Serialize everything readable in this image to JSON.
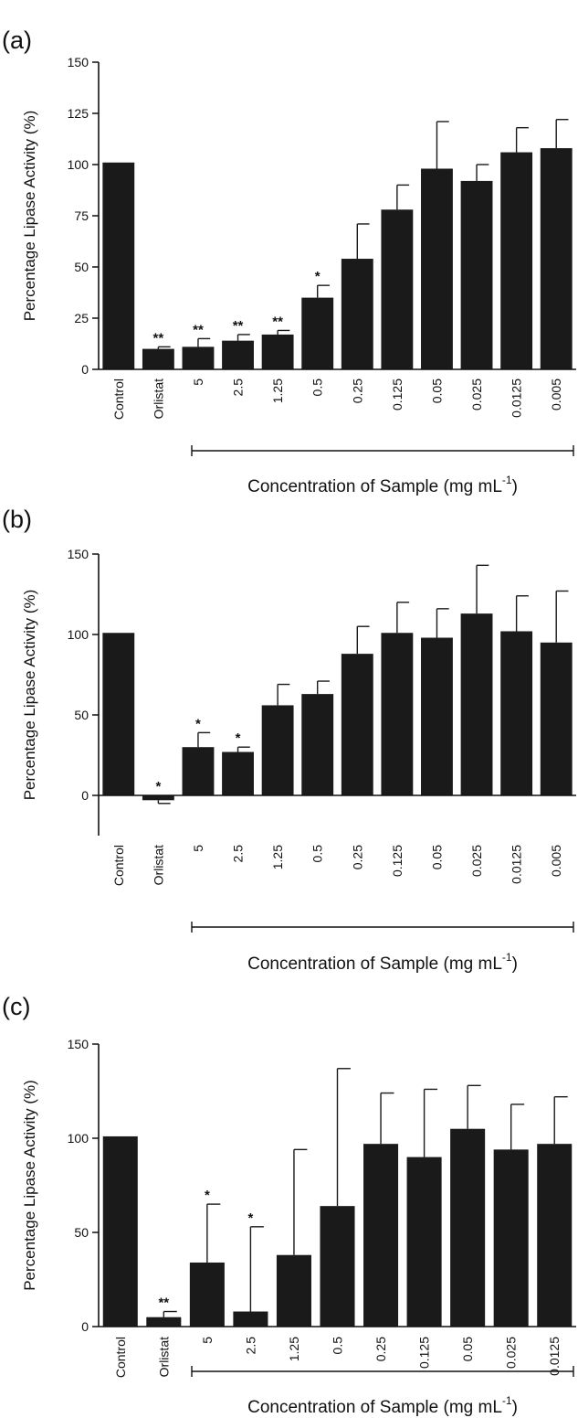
{
  "bar_color": "#1a1a1a",
  "chart_data": [
    {
      "type": "bar",
      "panel_label": "(a)",
      "ylabel": "Percentage Lipase Activity (%)",
      "xlabel_main": "Concentration of Sample (mg mL",
      "xlabel_sup": "-1",
      "xlabel_close": ")",
      "ylim": [
        0,
        150
      ],
      "yticks": [
        0,
        25,
        50,
        75,
        100,
        125,
        150
      ],
      "categories": [
        "Control",
        "Orlistat",
        "5",
        "2.5",
        "1.25",
        "0.5",
        "0.25",
        "0.125",
        "0.05",
        "0.025",
        "0.0125",
        "0.005"
      ],
      "values": [
        101,
        10,
        11,
        14,
        17,
        35,
        54,
        78,
        98,
        92,
        106,
        108
      ],
      "errors": [
        0,
        1,
        4,
        3,
        2,
        6,
        17,
        12,
        23,
        8,
        12,
        14
      ],
      "significance": [
        "",
        "**",
        "**",
        "**",
        "**",
        "*",
        "",
        "",
        "",
        "",
        "",
        ""
      ]
    },
    {
      "type": "bar",
      "panel_label": "(b)",
      "ylabel": "Percentage Lipase Activity (%)",
      "xlabel_main": "Concentration of Sample (mg mL",
      "xlabel_sup": "-1",
      "xlabel_close": ")",
      "ylim": [
        -25,
        150
      ],
      "yticks": [
        0,
        50,
        100,
        150
      ],
      "categories": [
        "Control",
        "Orlistat",
        "5",
        "2.5",
        "1.25",
        "0.5",
        "0.25",
        "0.125",
        "0.05",
        "0.025",
        "0.0125",
        "0.005"
      ],
      "values": [
        101,
        -3,
        30,
        27,
        56,
        63,
        88,
        101,
        98,
        113,
        102,
        95
      ],
      "errors": [
        0,
        2,
        9,
        3,
        13,
        8,
        17,
        19,
        18,
        30,
        22,
        32
      ],
      "significance": [
        "",
        "*",
        "*",
        "*",
        "",
        "",
        "",
        "",
        "",
        "",
        "",
        ""
      ]
    },
    {
      "type": "bar",
      "panel_label": "(c)",
      "ylabel": "Percentage Lipase Activity (%)",
      "xlabel_main": "Concentration of Sample (mg mL",
      "xlabel_sup": "-1",
      "xlabel_close": ")",
      "ylim": [
        0,
        150
      ],
      "yticks": [
        0,
        50,
        100,
        150
      ],
      "categories": [
        "Control",
        "Orlistat",
        "5",
        "2.5",
        "1.25",
        "0.5",
        "0.25",
        "0.125",
        "0.05",
        "0.025",
        "0.0125"
      ],
      "values": [
        101,
        5,
        34,
        8,
        38,
        64,
        97,
        90,
        105,
        94,
        97
      ],
      "errors": [
        0,
        3,
        31,
        45,
        56,
        73,
        27,
        36,
        23,
        24,
        25
      ],
      "significance": [
        "",
        "**",
        "*",
        "*",
        "",
        "",
        "",
        "",
        "",
        "",
        ""
      ]
    }
  ]
}
